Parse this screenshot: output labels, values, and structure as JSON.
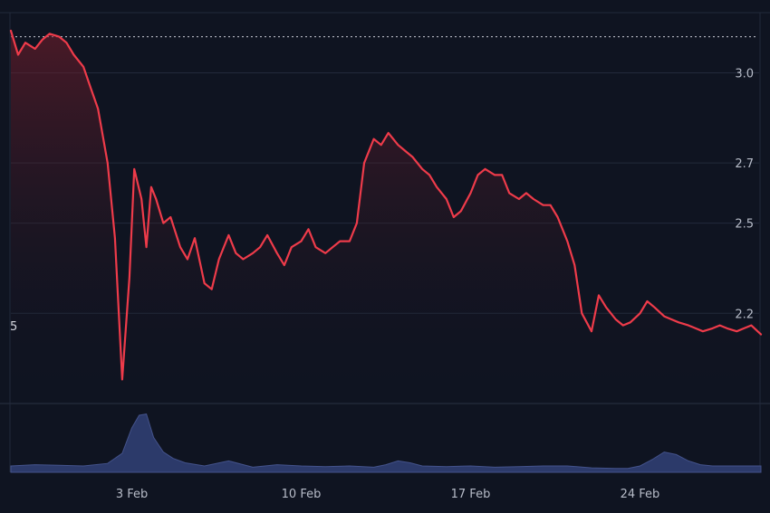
{
  "chart_data": {
    "type": "line",
    "left_edge_label": "5",
    "price": {
      "x_ticks": [
        "3 Feb",
        "10 Feb",
        "17 Feb",
        "24 Feb"
      ],
      "y_ticks": [
        "3.0",
        "2.7",
        "2.5",
        "2.2"
      ],
      "y_tick_values": [
        3.0,
        2.7,
        2.5,
        2.2
      ],
      "reference_line": 3.12,
      "ylim": [
        1.9,
        3.2
      ],
      "line_color": "#ee3b4a",
      "gradient_color": "#7a1e2c",
      "grid": true,
      "x": [
        0.0,
        0.3,
        0.6,
        1.0,
        1.3,
        1.6,
        2.0,
        2.3,
        2.6,
        3.0,
        3.3,
        3.6,
        4.0,
        4.3,
        4.6,
        4.9,
        5.1,
        5.4,
        5.6,
        5.8,
        6.0,
        6.3,
        6.6,
        7.0,
        7.3,
        7.6,
        8.0,
        8.3,
        8.6,
        9.0,
        9.3,
        9.6,
        10.0,
        10.3,
        10.6,
        11.0,
        11.3,
        11.6,
        12.0,
        12.3,
        12.6,
        13.0,
        13.3,
        13.6,
        14.0,
        14.3,
        14.6,
        15.0,
        15.3,
        15.6,
        16.0,
        16.3,
        16.6,
        17.0,
        17.3,
        17.6,
        18.0,
        18.3,
        18.6,
        19.0,
        19.3,
        19.6,
        20.0,
        20.3,
        20.6,
        21.0,
        21.3,
        21.6,
        22.0,
        22.3,
        22.6,
        23.0,
        23.3,
        23.6,
        24.0,
        24.3,
        24.6,
        25.0,
        25.3,
        25.6,
        26.0,
        26.3,
        26.6,
        27.0,
        27.3,
        27.6,
        28.0,
        28.3,
        28.6,
        29.0,
        29.3,
        29.6,
        30.0,
        30.3,
        30.6,
        31.0
      ],
      "values": [
        3.14,
        3.06,
        3.1,
        3.08,
        3.11,
        3.13,
        3.12,
        3.1,
        3.06,
        3.02,
        2.95,
        2.88,
        2.7,
        2.45,
        1.98,
        2.32,
        2.68,
        2.58,
        2.42,
        2.62,
        2.58,
        2.5,
        2.52,
        2.42,
        2.38,
        2.45,
        2.3,
        2.28,
        2.38,
        2.46,
        2.4,
        2.38,
        2.4,
        2.42,
        2.46,
        2.4,
        2.36,
        2.42,
        2.44,
        2.48,
        2.42,
        2.4,
        2.42,
        2.44,
        2.44,
        2.5,
        2.7,
        2.78,
        2.76,
        2.8,
        2.76,
        2.74,
        2.72,
        2.68,
        2.66,
        2.62,
        2.58,
        2.52,
        2.54,
        2.6,
        2.66,
        2.68,
        2.66,
        2.66,
        2.6,
        2.58,
        2.6,
        2.58,
        2.56,
        2.56,
        2.52,
        2.44,
        2.36,
        2.2,
        2.14,
        2.26,
        2.22,
        2.18,
        2.16,
        2.17,
        2.2,
        2.24,
        2.22,
        2.19,
        2.18,
        2.17,
        2.16,
        2.15,
        2.14,
        2.15,
        2.16,
        2.15,
        2.14,
        2.15,
        2.16,
        2.13
      ]
    },
    "volume": {
      "x": [
        0,
        1,
        2,
        3,
        4,
        4.6,
        5.0,
        5.3,
        5.6,
        5.9,
        6.3,
        6.7,
        7.2,
        8,
        9,
        10,
        11,
        12,
        13,
        14,
        15,
        15.5,
        16,
        16.5,
        17,
        18,
        19,
        20,
        21,
        22,
        23,
        24,
        25,
        25.5,
        26,
        26.5,
        27,
        27.5,
        28,
        28.5,
        29,
        30,
        31
      ],
      "values": [
        0.1,
        0.12,
        0.11,
        0.1,
        0.14,
        0.3,
        0.7,
        0.9,
        0.92,
        0.55,
        0.32,
        0.22,
        0.15,
        0.1,
        0.18,
        0.08,
        0.12,
        0.1,
        0.09,
        0.1,
        0.08,
        0.12,
        0.18,
        0.15,
        0.1,
        0.09,
        0.1,
        0.08,
        0.09,
        0.1,
        0.1,
        0.07,
        0.06,
        0.06,
        0.1,
        0.2,
        0.32,
        0.28,
        0.18,
        0.12,
        0.1,
        0.1,
        0.1
      ],
      "fill_color": "#2c3a6a",
      "stroke_color": "#43528a"
    }
  }
}
